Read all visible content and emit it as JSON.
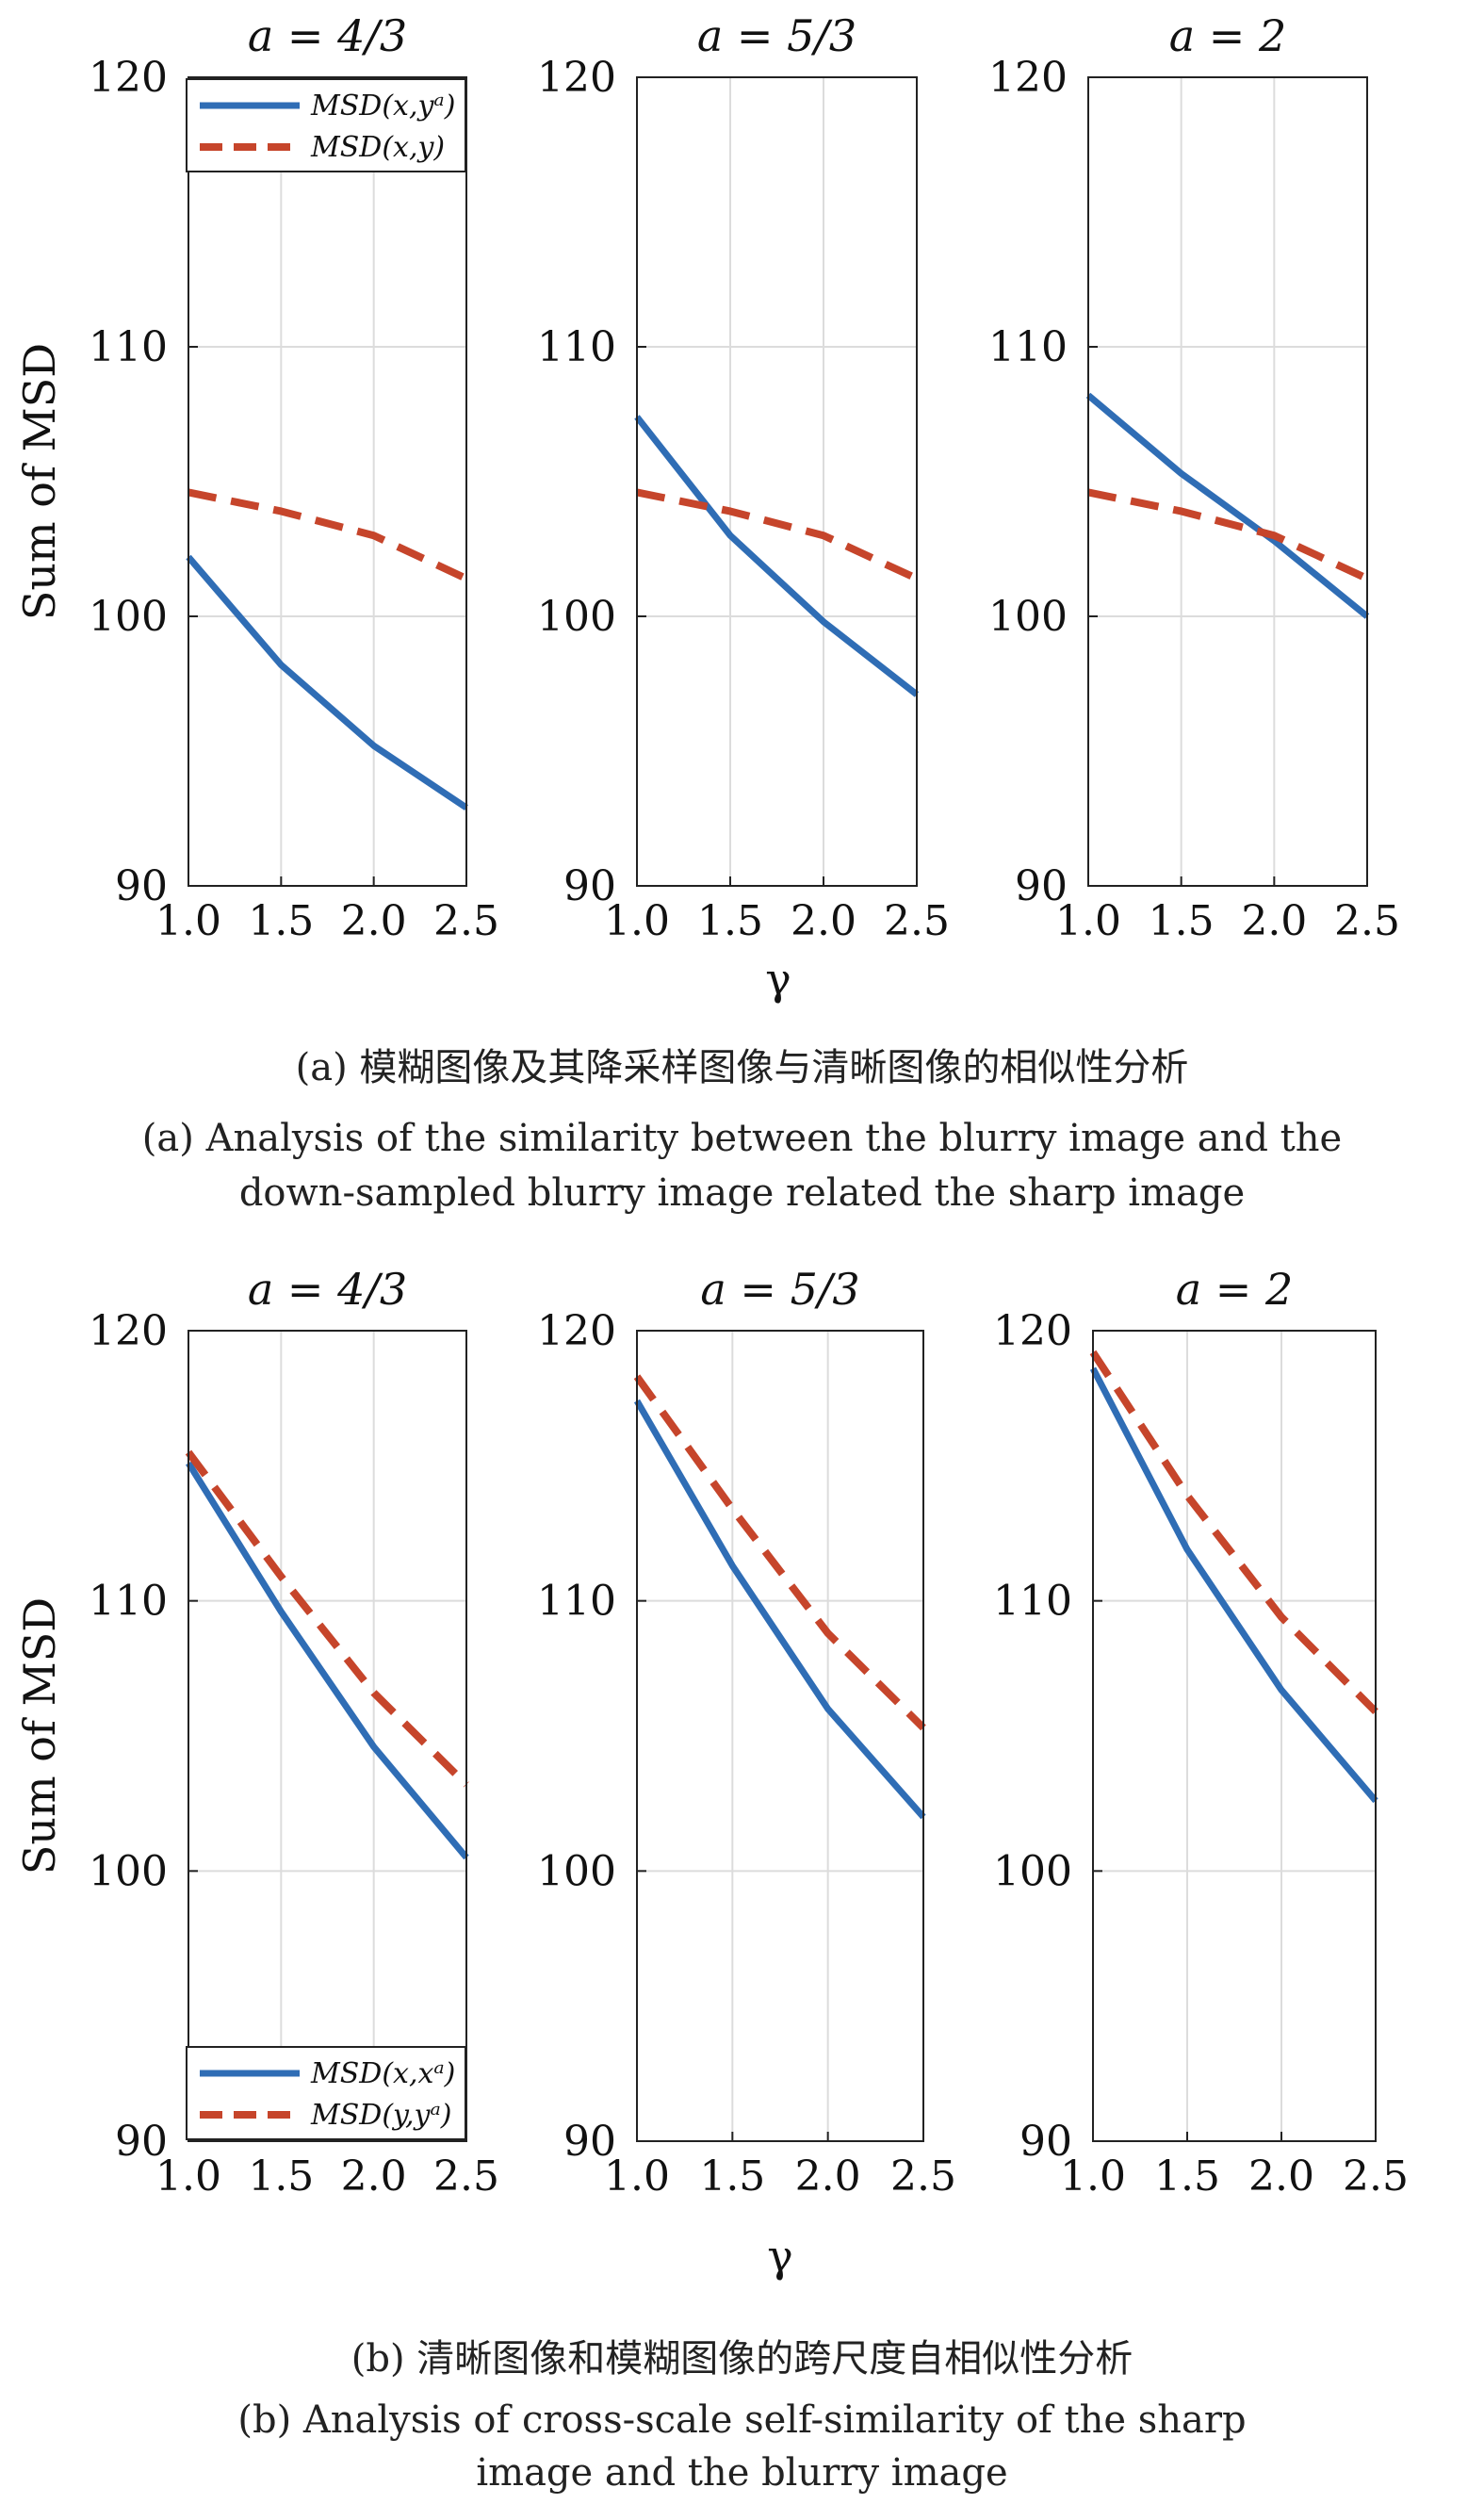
{
  "chart_data": [
    {
      "type": "line",
      "title": "a = 4/3",
      "ylabel": "Sum of MSD",
      "xlabel": "",
      "x": [
        1.0,
        1.5,
        2.0,
        2.5
      ],
      "xticks": [
        "1.0",
        "1.5",
        "2.0",
        "2.5"
      ],
      "yticks": [
        "90",
        "100",
        "110",
        "120"
      ],
      "xlim": [
        1.0,
        2.5
      ],
      "ylim": [
        90,
        120
      ],
      "grid": true,
      "legend": "top-left",
      "series": [
        {
          "name": "MSD(x,yᵃ)",
          "style": "solid",
          "color": "#2f6db5",
          "values": [
            102.2,
            98.2,
            95.2,
            92.9
          ]
        },
        {
          "name": "MSD(x,y)",
          "style": "dashed",
          "color": "#c6452b",
          "values": [
            104.6,
            103.9,
            103.0,
            101.4
          ]
        }
      ]
    },
    {
      "type": "line",
      "title": "a = 5/3",
      "ylabel": "",
      "xlabel": "γ",
      "x": [
        1.0,
        1.5,
        2.0,
        2.5
      ],
      "xticks": [
        "1.0",
        "1.5",
        "2.0",
        "2.5"
      ],
      "yticks": [
        "90",
        "100",
        "110",
        "120"
      ],
      "xlim": [
        1.0,
        2.5
      ],
      "ylim": [
        90,
        120
      ],
      "grid": true,
      "series": [
        {
          "style": "solid",
          "color": "#2f6db5",
          "values": [
            107.4,
            103.0,
            99.8,
            97.1
          ]
        },
        {
          "style": "dashed",
          "color": "#c6452b",
          "values": [
            104.6,
            103.9,
            103.0,
            101.4
          ]
        }
      ]
    },
    {
      "type": "line",
      "title": "a = 2",
      "ylabel": "",
      "xlabel": "",
      "x": [
        1.0,
        1.5,
        2.0,
        2.5
      ],
      "xticks": [
        "1.0",
        "1.5",
        "2.0",
        "2.5"
      ],
      "yticks": [
        "90",
        "100",
        "110",
        "120"
      ],
      "xlim": [
        1.0,
        2.5
      ],
      "ylim": [
        90,
        120
      ],
      "grid": true,
      "series": [
        {
          "style": "solid",
          "color": "#2f6db5",
          "values": [
            108.2,
            105.3,
            102.8,
            100.0
          ]
        },
        {
          "style": "dashed",
          "color": "#c6452b",
          "values": [
            104.6,
            103.9,
            103.0,
            101.4
          ]
        }
      ]
    },
    {
      "type": "line",
      "title": "a = 4/3",
      "ylabel": "Sum of MSD",
      "xlabel": "",
      "x": [
        1.0,
        1.5,
        2.0,
        2.5
      ],
      "xticks": [
        "1.0",
        "1.5",
        "2.0",
        "2.5"
      ],
      "yticks": [
        "90",
        "100",
        "110",
        "120"
      ],
      "xlim": [
        1.0,
        2.5
      ],
      "ylim": [
        90,
        120
      ],
      "grid": true,
      "legend": "bottom-left",
      "series": [
        {
          "name": "MSD(x,xᵃ)",
          "style": "solid",
          "color": "#2f6db5",
          "values": [
            115.1,
            109.6,
            104.6,
            100.5
          ]
        },
        {
          "name": "MSD(y,yᵃ)",
          "style": "dashed",
          "color": "#c6452b",
          "values": [
            115.5,
            110.9,
            106.6,
            103.2
          ]
        }
      ]
    },
    {
      "type": "line",
      "title": "a = 5/3",
      "ylabel": "",
      "xlabel": "γ",
      "x": [
        1.0,
        1.5,
        2.0,
        2.5
      ],
      "xticks": [
        "1.0",
        "1.5",
        "2.0",
        "2.5"
      ],
      "yticks": [
        "90",
        "100",
        "110",
        "120"
      ],
      "xlim": [
        1.0,
        2.5
      ],
      "ylim": [
        90,
        120
      ],
      "grid": true,
      "series": [
        {
          "style": "solid",
          "color": "#2f6db5",
          "values": [
            117.4,
            111.3,
            106.0,
            102.0
          ]
        },
        {
          "style": "dashed",
          "color": "#c6452b",
          "values": [
            118.3,
            113.4,
            108.8,
            105.3
          ]
        }
      ]
    },
    {
      "type": "line",
      "title": "a = 2",
      "ylabel": "",
      "xlabel": "",
      "x": [
        1.0,
        1.5,
        2.0,
        2.5
      ],
      "xticks": [
        "1.0",
        "1.5",
        "2.0",
        "2.5"
      ],
      "yticks": [
        "90",
        "100",
        "110",
        "120"
      ],
      "xlim": [
        1.0,
        2.5
      ],
      "ylim": [
        90,
        120
      ],
      "grid": true,
      "series": [
        {
          "style": "solid",
          "color": "#2f6db5",
          "values": [
            118.6,
            111.9,
            106.7,
            102.6
          ]
        },
        {
          "style": "dashed",
          "color": "#c6452b",
          "values": [
            119.2,
            113.9,
            109.4,
            105.9
          ]
        }
      ]
    }
  ],
  "captions": {
    "a_zh": "(a) 模糊图像及其降采样图像与清晰图像的相似性分析",
    "a_en_line1": "(a) Analysis of the similarity between the blurry image and the",
    "a_en_line2": "down-sampled blurry image related the sharp image",
    "b_zh": "(b) 清晰图像和模糊图像的跨尺度自相似性分析",
    "b_en_line1": "(b) Analysis of cross-scale self-similarity of the sharp",
    "b_en_line2": "image and the blurry image"
  }
}
